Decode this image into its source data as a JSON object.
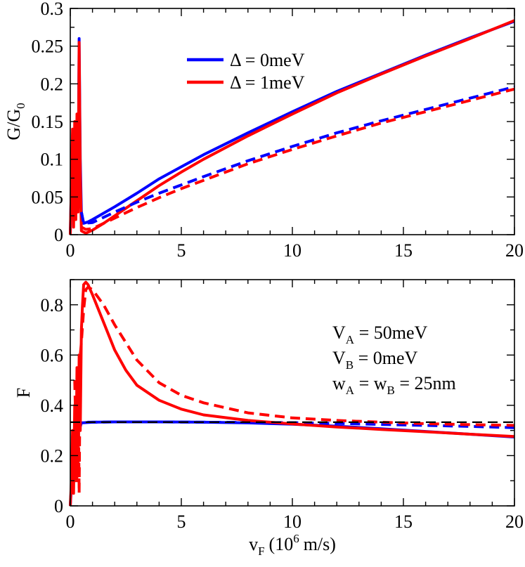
{
  "chart_data": [
    {
      "type": "line",
      "panel": "top",
      "ylabel": "G/G",
      "ylabel_sub": "0",
      "xlim": [
        0,
        20
      ],
      "ylim": [
        0,
        0.3
      ],
      "xticks": [
        0,
        5,
        10,
        15,
        20
      ],
      "xtick_labels": [
        "0",
        "5",
        "10",
        "15",
        "20"
      ],
      "yticks": [
        0,
        0.05,
        0.1,
        0.15,
        0.2,
        0.25,
        0.3
      ],
      "ytick_labels": [
        "0",
        "0.05",
        "0.1",
        "0.15",
        "0.2",
        "0.25",
        "0.3"
      ],
      "legend": {
        "placement": "upper-center",
        "entries": [
          {
            "label": "Δ = 0meV",
            "color": "#0000ff"
          },
          {
            "label": "Δ = 1meV",
            "color": "#ff0000"
          }
        ]
      },
      "series": [
        {
          "name": "Δ = 0meV (solid)",
          "color": "#0000ff",
          "dash": "solid",
          "x": [
            0,
            0.1,
            0.15,
            0.2,
            0.25,
            0.3,
            0.35,
            0.4,
            0.45,
            0.5,
            0.6,
            0.8,
            1,
            2,
            3,
            4,
            5,
            6,
            8,
            10,
            12,
            14,
            16,
            18,
            20
          ],
          "y": [
            0,
            0.13,
            0.02,
            0.14,
            0.03,
            0.15,
            0.05,
            0.26,
            0.1,
            0.03,
            0.015,
            0.017,
            0.02,
            0.037,
            0.055,
            0.074,
            0.09,
            0.106,
            0.135,
            0.163,
            0.19,
            0.214,
            0.238,
            0.261,
            0.283
          ]
        },
        {
          "name": "Δ = 1meV (solid)",
          "color": "#ff0000",
          "dash": "solid",
          "x": [
            0,
            0.1,
            0.15,
            0.2,
            0.25,
            0.3,
            0.35,
            0.4,
            0.45,
            0.5,
            0.7,
            1,
            1.5,
            2,
            3,
            4,
            5,
            6,
            8,
            10,
            12,
            14,
            16,
            18,
            20
          ],
          "y": [
            0,
            0.14,
            0.01,
            0.15,
            0.02,
            0.16,
            0.03,
            0.255,
            0.08,
            0.005,
            0.002,
            0.006,
            0.015,
            0.025,
            0.045,
            0.065,
            0.083,
            0.1,
            0.131,
            0.16,
            0.188,
            0.213,
            0.237,
            0.26,
            0.284
          ]
        },
        {
          "name": "Δ = 0meV (dashed)",
          "color": "#0000ff",
          "dash": "dashed",
          "x": [
            0.5,
            0.6,
            1,
            2,
            3,
            4,
            5,
            6,
            8,
            10,
            12,
            14,
            16,
            18,
            20
          ],
          "y": [
            0.03,
            0.015,
            0.016,
            0.03,
            0.043,
            0.055,
            0.066,
            0.077,
            0.098,
            0.117,
            0.135,
            0.151,
            0.166,
            0.181,
            0.196
          ]
        },
        {
          "name": "Δ = 1meV (dashed)",
          "color": "#ff0000",
          "dash": "dashed",
          "x": [
            0.5,
            0.7,
            1,
            2,
            3,
            4,
            5,
            6,
            8,
            10,
            12,
            14,
            16,
            18,
            20
          ],
          "y": [
            0.01,
            0.007,
            0.008,
            0.022,
            0.036,
            0.049,
            0.061,
            0.072,
            0.094,
            0.113,
            0.131,
            0.148,
            0.163,
            0.178,
            0.193
          ]
        }
      ]
    },
    {
      "type": "line",
      "panel": "bottom",
      "xlabel": "v",
      "xlabel_sub": "F",
      "xlabel_rest": "(10",
      "xlabel_sup": "6",
      "xlabel_unit": "m/s)",
      "ylabel": "F",
      "xlim": [
        0,
        20
      ],
      "ylim": [
        0,
        0.9
      ],
      "xticks": [
        0,
        5,
        10,
        15,
        20
      ],
      "xtick_labels": [
        "0",
        "5",
        "10",
        "15",
        "20"
      ],
      "yticks": [
        0,
        0.2,
        0.4,
        0.6,
        0.8
      ],
      "ytick_labels": [
        "0",
        "0.2",
        "0.4",
        "0.6",
        "0.8"
      ],
      "annotations": [
        {
          "main": "V",
          "sub": "A",
          "rest": " = 50meV"
        },
        {
          "main": "V",
          "sub": "B",
          "rest": " = 0meV"
        },
        {
          "main": "w",
          "sub": "A",
          "mid": " = w",
          "sub2": "B",
          "rest": " = 25nm"
        }
      ],
      "series": [
        {
          "name": "Δ = 0meV (solid)",
          "color": "#0000ff",
          "dash": "solid",
          "x": [
            0,
            0.1,
            0.2,
            0.3,
            0.4,
            0.5,
            1,
            2,
            4,
            6,
            8,
            10,
            12,
            14,
            16,
            18,
            20
          ],
          "y": [
            0,
            0.15,
            0.3,
            0.33,
            0.3,
            0.33,
            0.333,
            0.334,
            0.334,
            0.333,
            0.33,
            0.325,
            0.317,
            0.307,
            0.296,
            0.285,
            0.274
          ]
        },
        {
          "name": "Δ = 0meV (dashed)",
          "color": "#0000ff",
          "dash": "dashed",
          "x": [
            0.3,
            0.4,
            0.5,
            1,
            2,
            4,
            6,
            8,
            10,
            12,
            14,
            16,
            18,
            20
          ],
          "y": [
            0.3,
            0.32,
            0.333,
            0.333,
            0.334,
            0.334,
            0.333,
            0.332,
            0.331,
            0.328,
            0.324,
            0.32,
            0.316,
            0.311
          ]
        },
        {
          "name": "Δ = 1meV (solid)",
          "color": "#ff0000",
          "dash": "solid",
          "x": [
            0,
            0.05,
            0.1,
            0.15,
            0.2,
            0.25,
            0.3,
            0.35,
            0.4,
            0.45,
            0.5,
            0.55,
            0.6,
            0.7,
            0.8,
            1,
            1.5,
            2,
            2.5,
            3,
            4,
            5,
            6,
            8,
            10,
            12,
            14,
            16,
            18,
            20
          ],
          "y": [
            0,
            0.1,
            0.3,
            0.05,
            0.4,
            0.1,
            0.55,
            0.15,
            0.6,
            0.3,
            0.7,
            0.8,
            0.88,
            0.89,
            0.88,
            0.84,
            0.73,
            0.62,
            0.54,
            0.48,
            0.42,
            0.385,
            0.362,
            0.34,
            0.326,
            0.314,
            0.304,
            0.295,
            0.285,
            0.276
          ]
        },
        {
          "name": "Δ = 1meV (dashed)",
          "color": "#ff0000",
          "dash": "dashed",
          "x": [
            0.2,
            0.3,
            0.35,
            0.4,
            0.45,
            0.5,
            0.6,
            0.7,
            0.8,
            1,
            1.5,
            2,
            3,
            4,
            5,
            6,
            8,
            10,
            12,
            14,
            16,
            18,
            20
          ],
          "y": [
            0.5,
            0.1,
            0.55,
            0.05,
            0.6,
            0.65,
            0.78,
            0.86,
            0.87,
            0.86,
            0.8,
            0.72,
            0.58,
            0.49,
            0.44,
            0.41,
            0.37,
            0.35,
            0.34,
            0.333,
            0.327,
            0.323,
            0.32
          ]
        },
        {
          "name": "reference 1/3",
          "color": "#000000",
          "dash": "dashed",
          "x": [
            0,
            20
          ],
          "y": [
            0.333,
            0.333
          ]
        }
      ]
    }
  ]
}
